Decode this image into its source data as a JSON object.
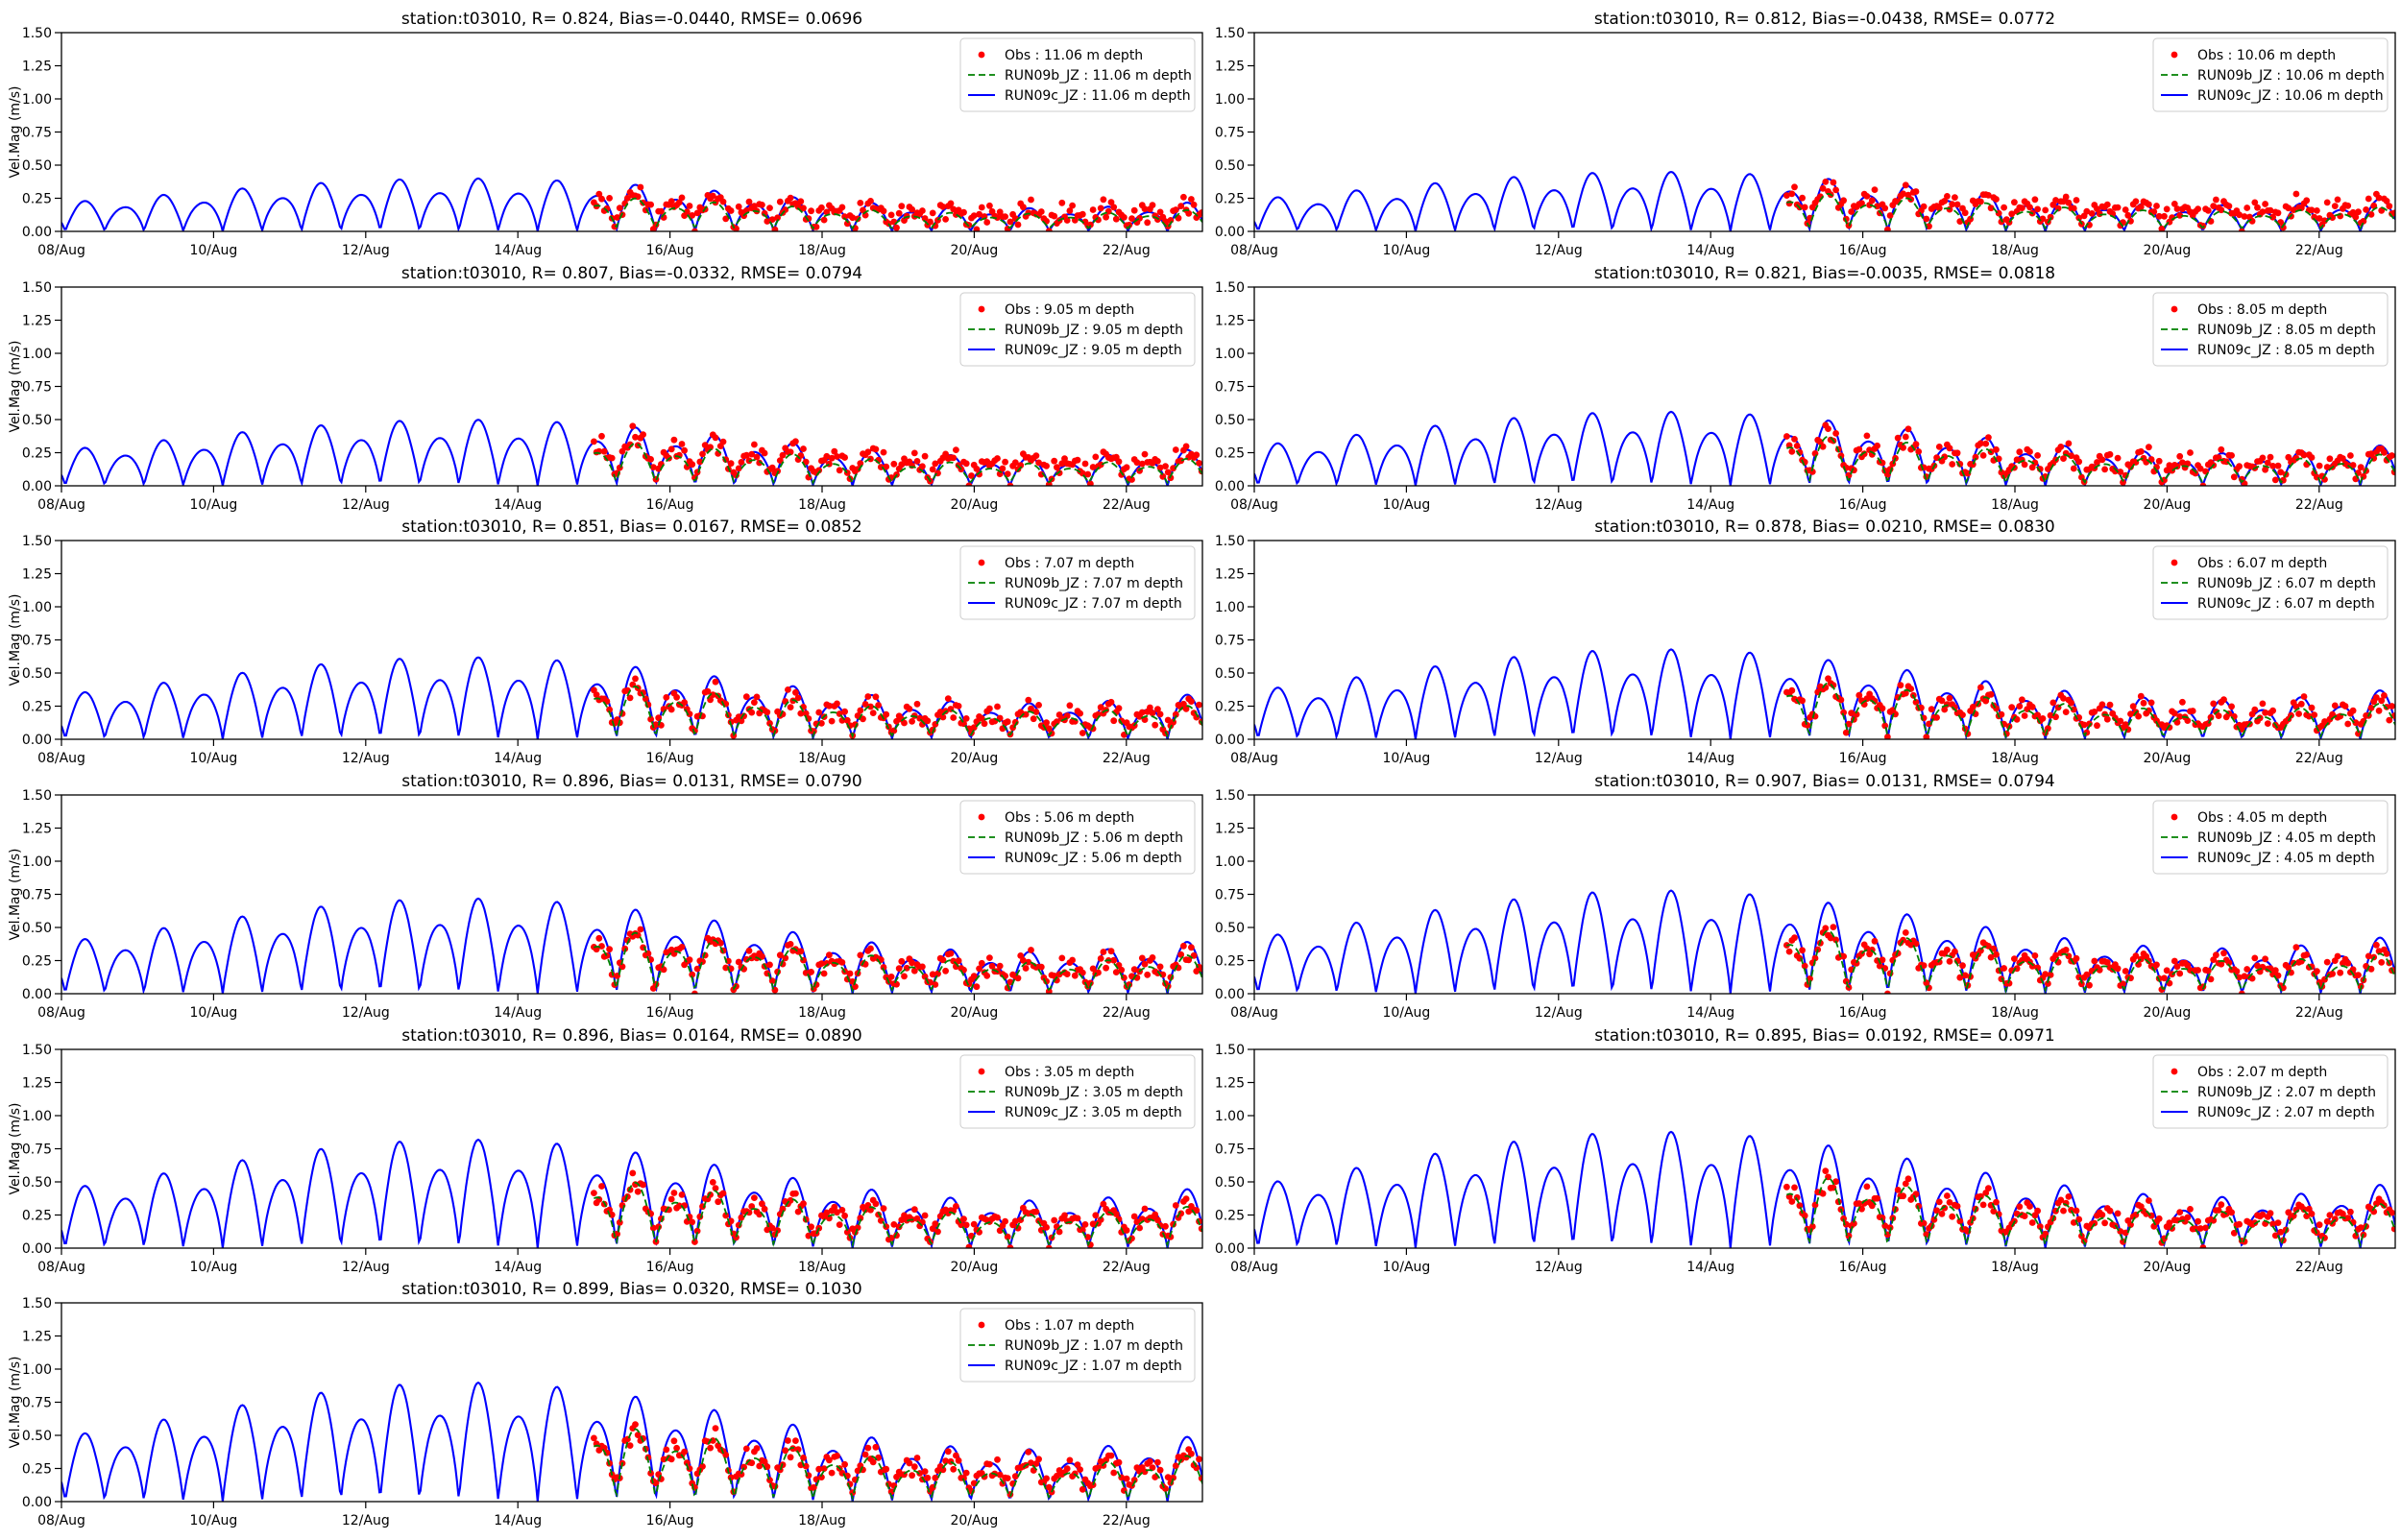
{
  "colors": {
    "obs": "#ff0000",
    "run09b": "#008000",
    "run09c": "#0000ff",
    "axes": "#000000"
  },
  "chart_data": [
    {
      "type": "line",
      "title": "station:t03010, R= 0.824, Bias=-0.0440, RMSE= 0.0696",
      "ylabel": "Vel.Mag (m/s)",
      "ylim": [
        0,
        1.5
      ],
      "xlim": [
        8,
        23
      ],
      "x_ticks": [
        "08/Aug",
        "10/Aug",
        "12/Aug",
        "14/Aug",
        "16/Aug",
        "18/Aug",
        "20/Aug",
        "22/Aug"
      ],
      "y_ticks": [
        "0.00",
        "0.25",
        "0.50",
        "0.75",
        "1.00",
        "1.25",
        "1.50"
      ],
      "legend_position": "upper right",
      "legend": [
        "Obs : 11.06 m depth",
        "RUN09b_JZ : 11.06 m depth",
        "RUN09c_JZ : 11.06 m depth"
      ],
      "series": [
        {
          "name": "Obs : 11.06 m depth",
          "kind": "points",
          "start": 15.0,
          "end": 23.0,
          "peak": 0.32,
          "trough": 0.05
        },
        {
          "name": "RUN09b_JZ : 11.06 m depth",
          "kind": "dashed",
          "start": 15.0,
          "end": 23.0,
          "peak": 0.28,
          "trough": 0.02
        },
        {
          "name": "RUN09c_JZ : 11.06 m depth",
          "kind": "solid",
          "start": 8.0,
          "end": 23.0,
          "peak": 0.4,
          "trough": 0.0
        }
      ]
    },
    {
      "type": "line",
      "title": "station:t03010, R= 0.812, Bias=-0.0438, RMSE= 0.0772",
      "ylabel": "",
      "ylim": [
        0,
        1.5
      ],
      "xlim": [
        8,
        23
      ],
      "x_ticks": [
        "08/Aug",
        "10/Aug",
        "12/Aug",
        "14/Aug",
        "16/Aug",
        "18/Aug",
        "20/Aug",
        "22/Aug"
      ],
      "y_ticks": [
        "0.00",
        "0.25",
        "0.50",
        "0.75",
        "1.00",
        "1.25",
        "1.50"
      ],
      "legend_position": "upper right",
      "legend": [
        "Obs : 10.06 m depth",
        "RUN09b_JZ : 10.06 m depth",
        "RUN09c_JZ : 10.06 m depth"
      ],
      "series": [
        {
          "name": "Obs : 10.06 m depth",
          "kind": "points",
          "start": 15.0,
          "end": 23.0,
          "peak": 0.37,
          "trough": 0.07
        },
        {
          "name": "RUN09b_JZ : 10.06 m depth",
          "kind": "dashed",
          "start": 15.0,
          "end": 23.0,
          "peak": 0.32,
          "trough": 0.02
        },
        {
          "name": "RUN09c_JZ : 10.06 m depth",
          "kind": "solid",
          "start": 8.0,
          "end": 23.0,
          "peak": 0.45,
          "trough": 0.0
        }
      ]
    },
    {
      "type": "line",
      "title": "station:t03010, R= 0.807, Bias=-0.0332, RMSE= 0.0794",
      "ylabel": "Vel.Mag (m/s)",
      "ylim": [
        0,
        1.5
      ],
      "xlim": [
        8,
        23
      ],
      "x_ticks": [
        "08/Aug",
        "10/Aug",
        "12/Aug",
        "14/Aug",
        "16/Aug",
        "18/Aug",
        "20/Aug",
        "22/Aug"
      ],
      "y_ticks": [
        "0.00",
        "0.25",
        "0.50",
        "0.75",
        "1.00",
        "1.25",
        "1.50"
      ],
      "legend_position": "upper right",
      "legend": [
        "Obs : 9.05 m depth",
        "RUN09b_JZ : 9.05 m depth",
        "RUN09c_JZ : 9.05 m depth"
      ],
      "series": [
        {
          "name": "Obs : 9.05 m depth",
          "kind": "points",
          "start": 15.0,
          "end": 23.0,
          "peak": 0.42,
          "trough": 0.06
        },
        {
          "name": "RUN09b_JZ : 9.05 m depth",
          "kind": "dashed",
          "start": 15.0,
          "end": 23.0,
          "peak": 0.36,
          "trough": 0.02
        },
        {
          "name": "RUN09c_JZ : 9.05 m depth",
          "kind": "solid",
          "start": 8.0,
          "end": 23.0,
          "peak": 0.5,
          "trough": 0.0
        }
      ]
    },
    {
      "type": "line",
      "title": "station:t03010, R= 0.821, Bias=-0.0035, RMSE= 0.0818",
      "ylabel": "",
      "ylim": [
        0,
        1.5
      ],
      "xlim": [
        8,
        23
      ],
      "x_ticks": [
        "08/Aug",
        "10/Aug",
        "12/Aug",
        "14/Aug",
        "16/Aug",
        "18/Aug",
        "20/Aug",
        "22/Aug"
      ],
      "y_ticks": [
        "0.00",
        "0.25",
        "0.50",
        "0.75",
        "1.00",
        "1.25",
        "1.50"
      ],
      "legend_position": "upper right",
      "legend": [
        "Obs : 8.05 m depth",
        "RUN09b_JZ : 8.05 m depth",
        "RUN09c_JZ : 8.05 m depth"
      ],
      "series": [
        {
          "name": "Obs : 8.05 m depth",
          "kind": "points",
          "start": 15.0,
          "end": 23.0,
          "peak": 0.45,
          "trough": 0.05
        },
        {
          "name": "RUN09b_JZ : 8.05 m depth",
          "kind": "dashed",
          "start": 15.0,
          "end": 23.0,
          "peak": 0.42,
          "trough": 0.02
        },
        {
          "name": "RUN09c_JZ : 8.05 m depth",
          "kind": "solid",
          "start": 8.0,
          "end": 23.0,
          "peak": 0.56,
          "trough": 0.0
        }
      ]
    },
    {
      "type": "line",
      "title": "station:t03010, R= 0.851, Bias= 0.0167, RMSE= 0.0852",
      "ylabel": "Vel.Mag (m/s)",
      "ylim": [
        0,
        1.5
      ],
      "xlim": [
        8,
        23
      ],
      "x_ticks": [
        "08/Aug",
        "10/Aug",
        "12/Aug",
        "14/Aug",
        "16/Aug",
        "18/Aug",
        "20/Aug",
        "22/Aug"
      ],
      "y_ticks": [
        "0.00",
        "0.25",
        "0.50",
        "0.75",
        "1.00",
        "1.25",
        "1.50"
      ],
      "legend_position": "upper right",
      "legend": [
        "Obs : 7.07 m depth",
        "RUN09b_JZ : 7.07 m depth",
        "RUN09c_JZ : 7.07 m depth"
      ],
      "series": [
        {
          "name": "Obs : 7.07 m depth",
          "kind": "points",
          "start": 15.0,
          "end": 23.0,
          "peak": 0.46,
          "trough": 0.05
        },
        {
          "name": "RUN09b_JZ : 7.07 m depth",
          "kind": "dashed",
          "start": 15.0,
          "end": 23.0,
          "peak": 0.45,
          "trough": 0.02
        },
        {
          "name": "RUN09c_JZ : 7.07 m depth",
          "kind": "solid",
          "start": 8.0,
          "end": 23.0,
          "peak": 0.62,
          "trough": 0.0
        }
      ]
    },
    {
      "type": "line",
      "title": "station:t03010, R= 0.878, Bias= 0.0210, RMSE= 0.0830",
      "ylabel": "",
      "ylim": [
        0,
        1.5
      ],
      "xlim": [
        8,
        23
      ],
      "x_ticks": [
        "08/Aug",
        "10/Aug",
        "12/Aug",
        "14/Aug",
        "16/Aug",
        "18/Aug",
        "20/Aug",
        "22/Aug"
      ],
      "y_ticks": [
        "0.00",
        "0.25",
        "0.50",
        "0.75",
        "1.00",
        "1.25",
        "1.50"
      ],
      "legend_position": "upper right",
      "legend": [
        "Obs : 6.07 m depth",
        "RUN09b_JZ : 6.07 m depth",
        "RUN09c_JZ : 6.07 m depth"
      ],
      "series": [
        {
          "name": "Obs : 6.07 m depth",
          "kind": "points",
          "start": 15.0,
          "end": 23.0,
          "peak": 0.48,
          "trough": 0.06
        },
        {
          "name": "RUN09b_JZ : 6.07 m depth",
          "kind": "dashed",
          "start": 15.0,
          "end": 23.0,
          "peak": 0.48,
          "trough": 0.02
        },
        {
          "name": "RUN09c_JZ : 6.07 m depth",
          "kind": "solid",
          "start": 8.0,
          "end": 23.0,
          "peak": 0.68,
          "trough": 0.0
        }
      ]
    },
    {
      "type": "line",
      "title": "station:t03010, R= 0.896, Bias= 0.0131, RMSE= 0.0790",
      "ylabel": "Vel.Mag (m/s)",
      "ylim": [
        0,
        1.5
      ],
      "xlim": [
        8,
        23
      ],
      "x_ticks": [
        "08/Aug",
        "10/Aug",
        "12/Aug",
        "14/Aug",
        "16/Aug",
        "18/Aug",
        "20/Aug",
        "22/Aug"
      ],
      "y_ticks": [
        "0.00",
        "0.25",
        "0.50",
        "0.75",
        "1.00",
        "1.25",
        "1.50"
      ],
      "legend_position": "upper right",
      "legend": [
        "Obs : 5.06 m depth",
        "RUN09b_JZ : 5.06 m depth",
        "RUN09c_JZ : 5.06 m depth"
      ],
      "series": [
        {
          "name": "Obs : 5.06 m depth",
          "kind": "points",
          "start": 15.0,
          "end": 23.0,
          "peak": 0.52,
          "trough": 0.05
        },
        {
          "name": "RUN09b_JZ : 5.06 m depth",
          "kind": "dashed",
          "start": 15.0,
          "end": 23.0,
          "peak": 0.52,
          "trough": 0.02
        },
        {
          "name": "RUN09c_JZ : 5.06 m depth",
          "kind": "solid",
          "start": 8.0,
          "end": 23.0,
          "peak": 0.72,
          "trough": 0.0
        }
      ]
    },
    {
      "type": "line",
      "title": "station:t03010, R= 0.907, Bias= 0.0131, RMSE= 0.0794",
      "ylabel": "",
      "ylim": [
        0,
        1.5
      ],
      "xlim": [
        8,
        23
      ],
      "x_ticks": [
        "08/Aug",
        "10/Aug",
        "12/Aug",
        "14/Aug",
        "16/Aug",
        "18/Aug",
        "20/Aug",
        "22/Aug"
      ],
      "y_ticks": [
        "0.00",
        "0.25",
        "0.50",
        "0.75",
        "1.00",
        "1.25",
        "1.50"
      ],
      "legend_position": "upper right",
      "legend": [
        "Obs : 4.05 m depth",
        "RUN09b_JZ : 4.05 m depth",
        "RUN09c_JZ : 4.05 m depth"
      ],
      "series": [
        {
          "name": "Obs : 4.05 m depth",
          "kind": "points",
          "start": 15.0,
          "end": 23.0,
          "peak": 0.53,
          "trough": 0.06
        },
        {
          "name": "RUN09b_JZ : 4.05 m depth",
          "kind": "dashed",
          "start": 15.0,
          "end": 23.0,
          "peak": 0.54,
          "trough": 0.02
        },
        {
          "name": "RUN09c_JZ : 4.05 m depth",
          "kind": "solid",
          "start": 8.0,
          "end": 23.0,
          "peak": 0.78,
          "trough": 0.0
        }
      ]
    },
    {
      "type": "line",
      "title": "station:t03010, R= 0.896, Bias= 0.0164, RMSE= 0.0890",
      "ylabel": "Vel.Mag (m/s)",
      "ylim": [
        0,
        1.5
      ],
      "xlim": [
        8,
        23
      ],
      "x_ticks": [
        "08/Aug",
        "10/Aug",
        "12/Aug",
        "14/Aug",
        "16/Aug",
        "18/Aug",
        "20/Aug",
        "22/Aug"
      ],
      "y_ticks": [
        "0.00",
        "0.25",
        "0.50",
        "0.75",
        "1.00",
        "1.25",
        "1.50"
      ],
      "legend_position": "upper right",
      "legend": [
        "Obs : 3.05 m depth",
        "RUN09b_JZ : 3.05 m depth",
        "RUN09c_JZ : 3.05 m depth"
      ],
      "series": [
        {
          "name": "Obs : 3.05 m depth",
          "kind": "points",
          "start": 15.0,
          "end": 23.0,
          "peak": 0.56,
          "trough": 0.06
        },
        {
          "name": "RUN09b_JZ : 3.05 m depth",
          "kind": "dashed",
          "start": 15.0,
          "end": 23.0,
          "peak": 0.56,
          "trough": 0.02
        },
        {
          "name": "RUN09c_JZ : 3.05 m depth",
          "kind": "solid",
          "start": 8.0,
          "end": 23.0,
          "peak": 0.82,
          "trough": 0.0
        }
      ]
    },
    {
      "type": "line",
      "title": "station:t03010, R= 0.895, Bias= 0.0192, RMSE= 0.0971",
      "ylabel": "",
      "ylim": [
        0,
        1.5
      ],
      "xlim": [
        8,
        23
      ],
      "x_ticks": [
        "08/Aug",
        "10/Aug",
        "12/Aug",
        "14/Aug",
        "16/Aug",
        "18/Aug",
        "20/Aug",
        "22/Aug"
      ],
      "y_ticks": [
        "0.00",
        "0.25",
        "0.50",
        "0.75",
        "1.00",
        "1.25",
        "1.50"
      ],
      "legend_position": "upper right",
      "legend": [
        "Obs : 2.07 m depth",
        "RUN09b_JZ : 2.07 m depth",
        "RUN09c_JZ : 2.07 m depth"
      ],
      "series": [
        {
          "name": "Obs : 2.07 m depth",
          "kind": "points",
          "start": 15.0,
          "end": 23.0,
          "peak": 0.58,
          "trough": 0.07
        },
        {
          "name": "RUN09b_JZ : 2.07 m depth",
          "kind": "dashed",
          "start": 15.0,
          "end": 23.0,
          "peak": 0.6,
          "trough": 0.02
        },
        {
          "name": "RUN09c_JZ : 2.07 m depth",
          "kind": "solid",
          "start": 8.0,
          "end": 23.0,
          "peak": 0.88,
          "trough": 0.0
        }
      ]
    },
    {
      "type": "line",
      "title": "station:t03010, R= 0.899, Bias= 0.0320, RMSE= 0.1030",
      "ylabel": "Vel.Mag (m/s)",
      "ylim": [
        0,
        1.5
      ],
      "xlim": [
        8,
        23
      ],
      "x_ticks": [
        "08/Aug",
        "10/Aug",
        "12/Aug",
        "14/Aug",
        "16/Aug",
        "18/Aug",
        "20/Aug",
        "22/Aug"
      ],
      "y_ticks": [
        "0.00",
        "0.25",
        "0.50",
        "0.75",
        "1.00",
        "1.25",
        "1.50"
      ],
      "legend_position": "upper right",
      "legend": [
        "Obs : 1.07 m depth",
        "RUN09b_JZ : 1.07 m depth",
        "RUN09c_JZ : 1.07 m depth"
      ],
      "series": [
        {
          "name": "Obs : 1.07 m depth",
          "kind": "points",
          "start": 15.0,
          "end": 23.0,
          "peak": 0.6,
          "trough": 0.08
        },
        {
          "name": "RUN09b_JZ : 1.07 m depth",
          "kind": "dashed",
          "start": 15.0,
          "end": 23.0,
          "peak": 0.62,
          "trough": 0.02
        },
        {
          "name": "RUN09c_JZ : 1.07 m depth",
          "kind": "solid",
          "start": 8.0,
          "end": 23.0,
          "peak": 0.9,
          "trough": 0.0
        }
      ]
    }
  ]
}
